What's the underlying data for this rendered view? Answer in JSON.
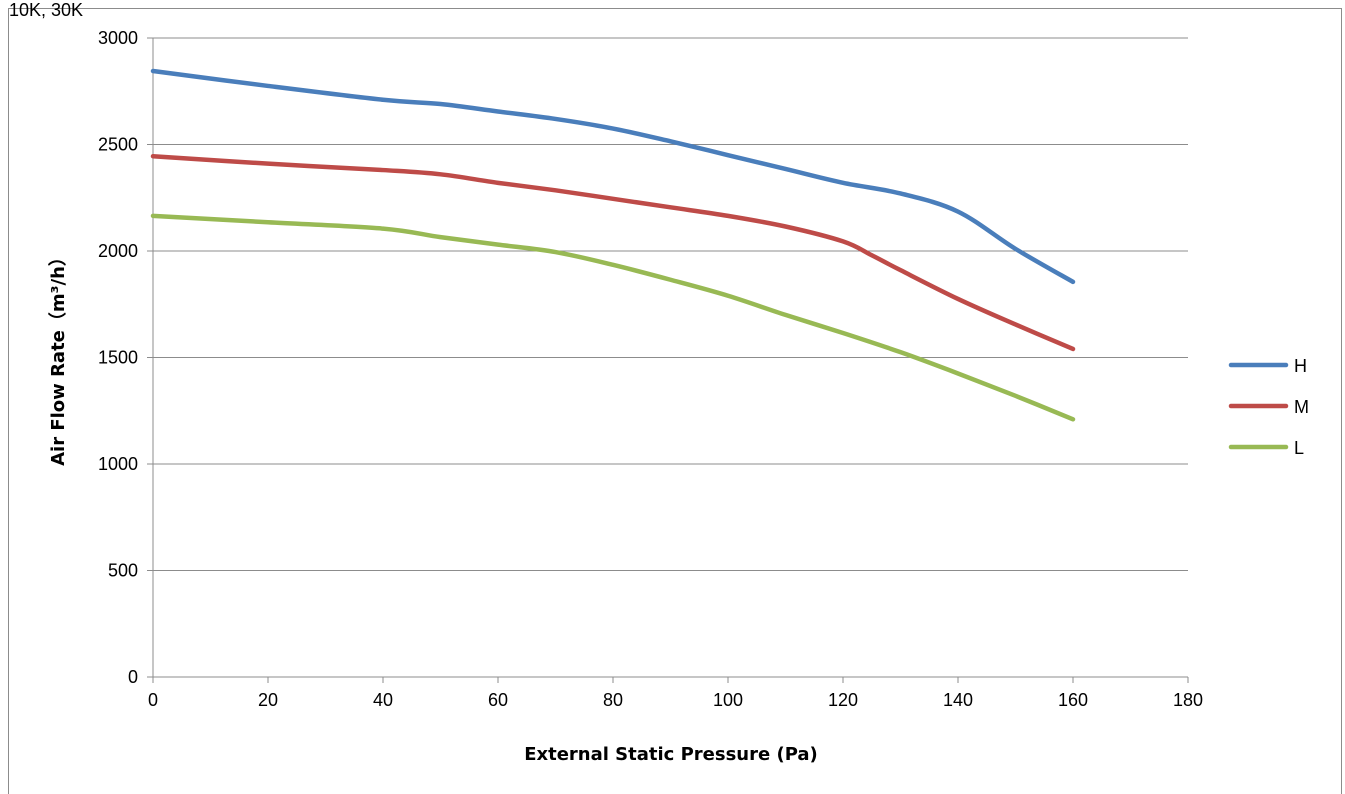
{
  "header": {
    "corner_text": "10K, 30K"
  },
  "chart_data": {
    "type": "line",
    "title": "",
    "xlabel": "External Static Pressure (Pa)",
    "ylabel": "Air Flow Rate（m³/h）",
    "xlim": [
      0,
      180
    ],
    "ylim": [
      0,
      3000
    ],
    "xticks": [
      0,
      20,
      40,
      60,
      80,
      100,
      120,
      140,
      160,
      180
    ],
    "yticks": [
      0,
      500,
      1000,
      1500,
      2000,
      2500,
      3000
    ],
    "grid": "horizontal",
    "legend_position": "right",
    "series": [
      {
        "name": "H",
        "color": "#4a7ebb",
        "x": [
          0,
          20,
          40,
          50,
          60,
          70,
          80,
          90,
          100,
          110,
          120,
          130,
          140,
          150,
          160
        ],
        "y": [
          2845,
          2775,
          2710,
          2690,
          2655,
          2620,
          2575,
          2515,
          2450,
          2385,
          2320,
          2270,
          2185,
          2010,
          1855
        ]
      },
      {
        "name": "M",
        "color": "#be4b48",
        "x": [
          0,
          20,
          40,
          50,
          60,
          70,
          80,
          90,
          100,
          110,
          120,
          125,
          130,
          140,
          150,
          160
        ],
        "y": [
          2445,
          2410,
          2380,
          2360,
          2320,
          2285,
          2245,
          2205,
          2165,
          2115,
          2045,
          1980,
          1910,
          1775,
          1655,
          1540
        ]
      },
      {
        "name": "L",
        "color": "#98b954",
        "x": [
          0,
          20,
          40,
          50,
          60,
          70,
          80,
          90,
          100,
          110,
          120,
          130,
          140,
          150,
          160
        ],
        "y": [
          2165,
          2135,
          2105,
          2065,
          2030,
          1995,
          1935,
          1865,
          1790,
          1700,
          1615,
          1525,
          1425,
          1320,
          1210
        ]
      }
    ]
  }
}
